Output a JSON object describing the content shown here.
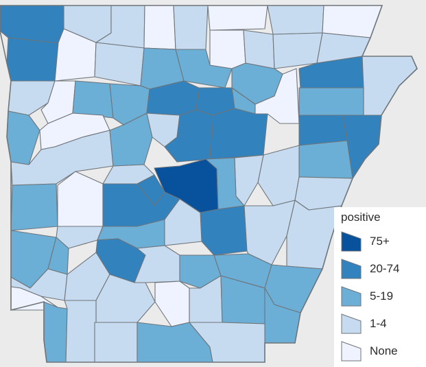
{
  "colors": {
    "c75": "#08519c",
    "c20": "#3182bd",
    "c5": "#6baed6",
    "c1": "#c6dbef",
    "c0": "#eff3ff",
    "background": "#ebebeb",
    "border": "#6f7479"
  },
  "legend": {
    "title": "positive",
    "items": [
      {
        "label": "75+",
        "class": "c75"
      },
      {
        "label": "20-74",
        "class": "c20"
      },
      {
        "label": "5-19",
        "class": "c5"
      },
      {
        "label": "1-4",
        "class": "c1"
      },
      {
        "label": "None",
        "class": "c0"
      }
    ]
  },
  "map": {
    "region": "Arkansas counties",
    "measure": "positive"
  }
}
